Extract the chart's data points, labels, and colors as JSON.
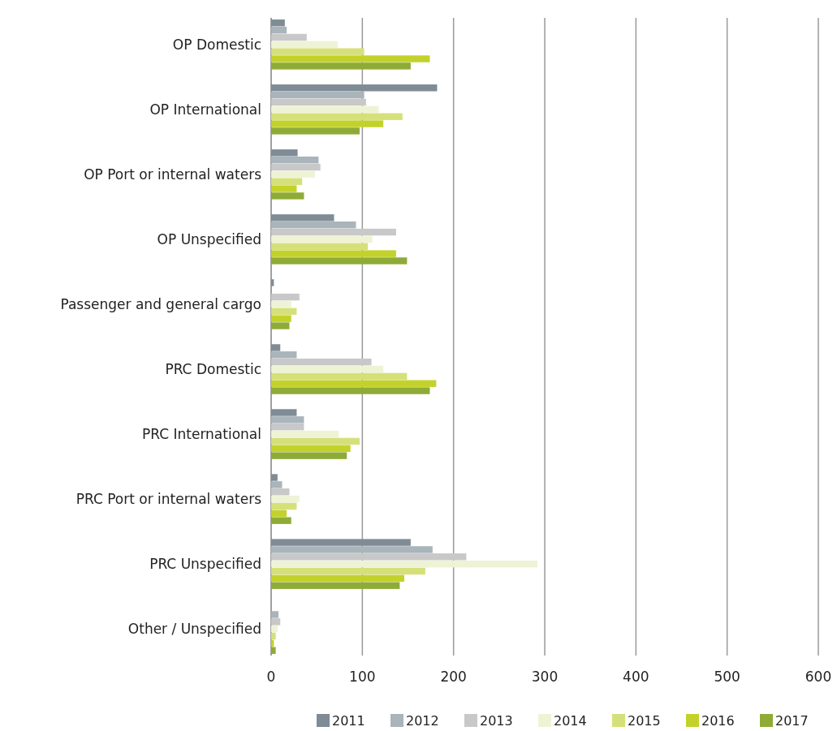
{
  "chart_data": {
    "type": "bar",
    "orientation": "horizontal",
    "categories": [
      "OP Domestic",
      "OP International",
      "OP Port or internal waters",
      "OP Unspecified",
      "Passenger and general cargo",
      "PRC Domestic",
      "PRC International",
      "PRC Port or internal waters",
      "PRC Unspecified",
      "Other / Unspecified"
    ],
    "series": [
      {
        "name": "2011",
        "color": "#7f8c96",
        "values": [
          15,
          182,
          29,
          69,
          3,
          10,
          28,
          7,
          153,
          null
        ]
      },
      {
        "name": "2012",
        "color": "#a9b4bb",
        "values": [
          17,
          102,
          52,
          93,
          0,
          28,
          36,
          12,
          177,
          8
        ]
      },
      {
        "name": "2013",
        "color": "#c8c8c8",
        "values": [
          39,
          104,
          54,
          137,
          31,
          110,
          36,
          20,
          214,
          10
        ]
      },
      {
        "name": "2014",
        "color": "#eef3d6",
        "values": [
          73,
          118,
          48,
          111,
          22,
          123,
          74,
          31,
          292,
          7
        ]
      },
      {
        "name": "2015",
        "color": "#d6e07a",
        "values": [
          102,
          144,
          34,
          106,
          28,
          149,
          97,
          28,
          169,
          5
        ]
      },
      {
        "name": "2016",
        "color": "#c3d22b",
        "values": [
          174,
          123,
          28,
          137,
          22,
          181,
          87,
          17,
          146,
          3
        ]
      },
      {
        "name": "2017",
        "color": "#8fab37",
        "values": [
          153,
          97,
          36,
          149,
          20,
          174,
          83,
          22,
          141,
          5
        ]
      }
    ],
    "xlim": [
      0,
      600
    ],
    "xticks": [
      0,
      100,
      200,
      300,
      400,
      500,
      600
    ],
    "grid": "x",
    "legend": "bottom"
  }
}
